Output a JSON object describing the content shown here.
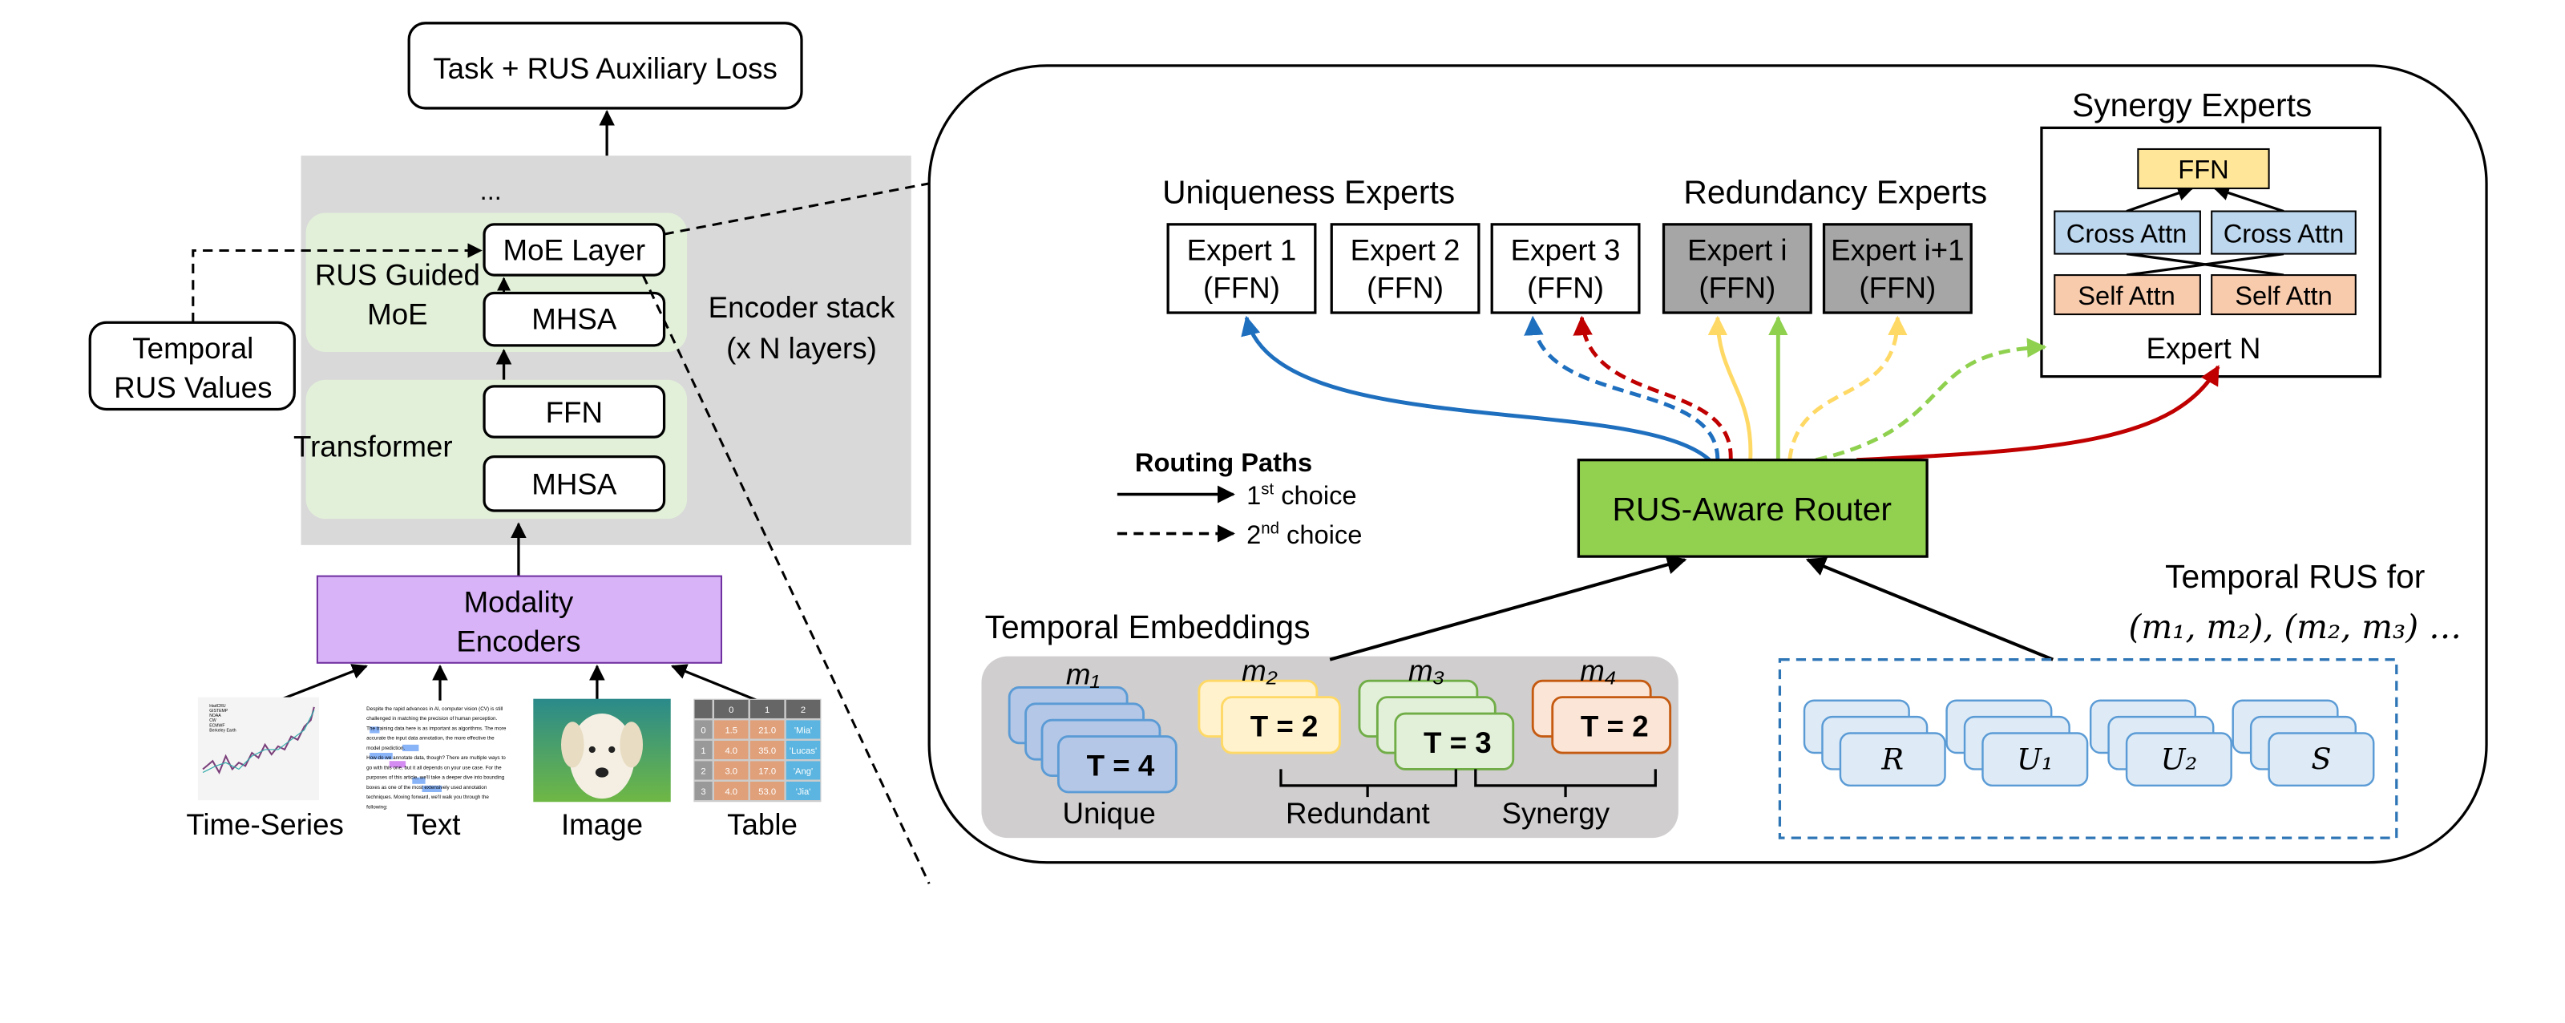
{
  "colors": {
    "encoder_stack_bg": "#d9d9d9",
    "block_green": "#e2f0d9",
    "modality_purple": "#d9b3f7",
    "router_green": "#92d050",
    "redundancy_gray": "#a6a6a6",
    "ffn_yellow": "#ffe699",
    "cross_attn_blue": "#bdd7ee",
    "self_attn_orange": "#f8cbad",
    "route_blue": "#1f6fbf",
    "route_red": "#c00000",
    "route_yellow": "#ffd966",
    "route_green": "#8fd14f",
    "rus_dashed_border": "#2e75b6"
  },
  "left": {
    "loss_box": "Task + RUS Auxiliary Loss",
    "ellipsis": "...",
    "moe_block": {
      "label_line1": "RUS Guided",
      "label_line2": "MoE",
      "moe_layer": "MoE Layer",
      "mhsa": "MHSA"
    },
    "transformer_block": {
      "label": "Transformer",
      "ffn": "FFN",
      "mhsa": "MHSA"
    },
    "encoder_stack": {
      "line1": "Encoder stack",
      "line2": "(x N layers)"
    },
    "temporal_rus": {
      "line1": "Temporal",
      "line2": "RUS Values"
    },
    "modality_encoders": {
      "line1": "Modality",
      "line2": "Encoders"
    },
    "inputs": [
      {
        "label": "Time-Series",
        "icon": "time-series-plot"
      },
      {
        "label": "Text",
        "icon": "text-document"
      },
      {
        "label": "Image",
        "icon": "puppy-photo"
      },
      {
        "label": "Table",
        "icon": "data-table"
      }
    ],
    "ts_legend": [
      "HadCRU",
      "GISTEMP",
      "NOAA",
      "CW",
      "ECMWF",
      "Berkeley Earth"
    ],
    "text_sample": [
      "Despite the rapid advances in AI, computer vision (CV) is still",
      "challenged in matching the precision of human perception.",
      "The training data here is as important as algorithms. The more",
      "accurate the input data annotation, the more effective the",
      "model prediction.",
      "How do we annotate data, though? There are multiple ways to",
      "go with this one, but it all depends on your use case. For the",
      "purposes of this article, we'll take a deeper dive into bounding",
      "boxes as one of the most extensively used annotation",
      "techniques. Moving forward, we'll walk you through the",
      "following:"
    ],
    "table_sample": {
      "headers": [
        "",
        "0",
        "1",
        "2"
      ],
      "rows": [
        [
          "0",
          "1.5",
          "21.0",
          "'Mia'"
        ],
        [
          "1",
          "4.0",
          "35.0",
          "'Lucas'"
        ],
        [
          "2",
          "3.0",
          "17.0",
          "'Ang'"
        ],
        [
          "3",
          "4.0",
          "53.0",
          "'Jia'"
        ]
      ]
    }
  },
  "right": {
    "uniqueness_title": "Uniqueness Experts",
    "redundancy_title": "Redundancy Experts",
    "synergy_title": "Synergy Experts",
    "uniqueness_experts": [
      {
        "name": "Expert 1",
        "type": "(FFN)"
      },
      {
        "name": "Expert 2",
        "type": "(FFN)"
      },
      {
        "name": "Expert 3",
        "type": "(FFN)"
      }
    ],
    "redundancy_experts": [
      {
        "name": "Expert i",
        "type": "(FFN)"
      },
      {
        "name": "Expert i+1",
        "type": "(FFN)"
      }
    ],
    "synergy_expert": {
      "ffn": "FFN",
      "cross_attn": "Cross Attn",
      "self_attn": "Self Attn",
      "name": "Expert N"
    },
    "router": "RUS-Aware Router",
    "legend": {
      "title": "Routing Paths",
      "first": {
        "num": "1",
        "sup": "st",
        "text": " choice"
      },
      "second": {
        "num": "2",
        "sup": "nd",
        "text": " choice"
      }
    },
    "embeddings": {
      "title": "Temporal Embeddings",
      "modalities": [
        {
          "label": "m₁",
          "t": "T = 4"
        },
        {
          "label": "m₂",
          "t": "T = 2"
        },
        {
          "label": "m₃",
          "t": "T = 3"
        },
        {
          "label": "m₄",
          "t": "T = 2"
        }
      ],
      "groups": [
        "Unique",
        "Redundant",
        "Synergy"
      ]
    },
    "rus": {
      "title_line1": "Temporal RUS for",
      "title_line2": "(m₁, m₂), (m₂, m₃) …",
      "cards": [
        "R",
        "U₁",
        "U₂",
        "S"
      ]
    }
  }
}
